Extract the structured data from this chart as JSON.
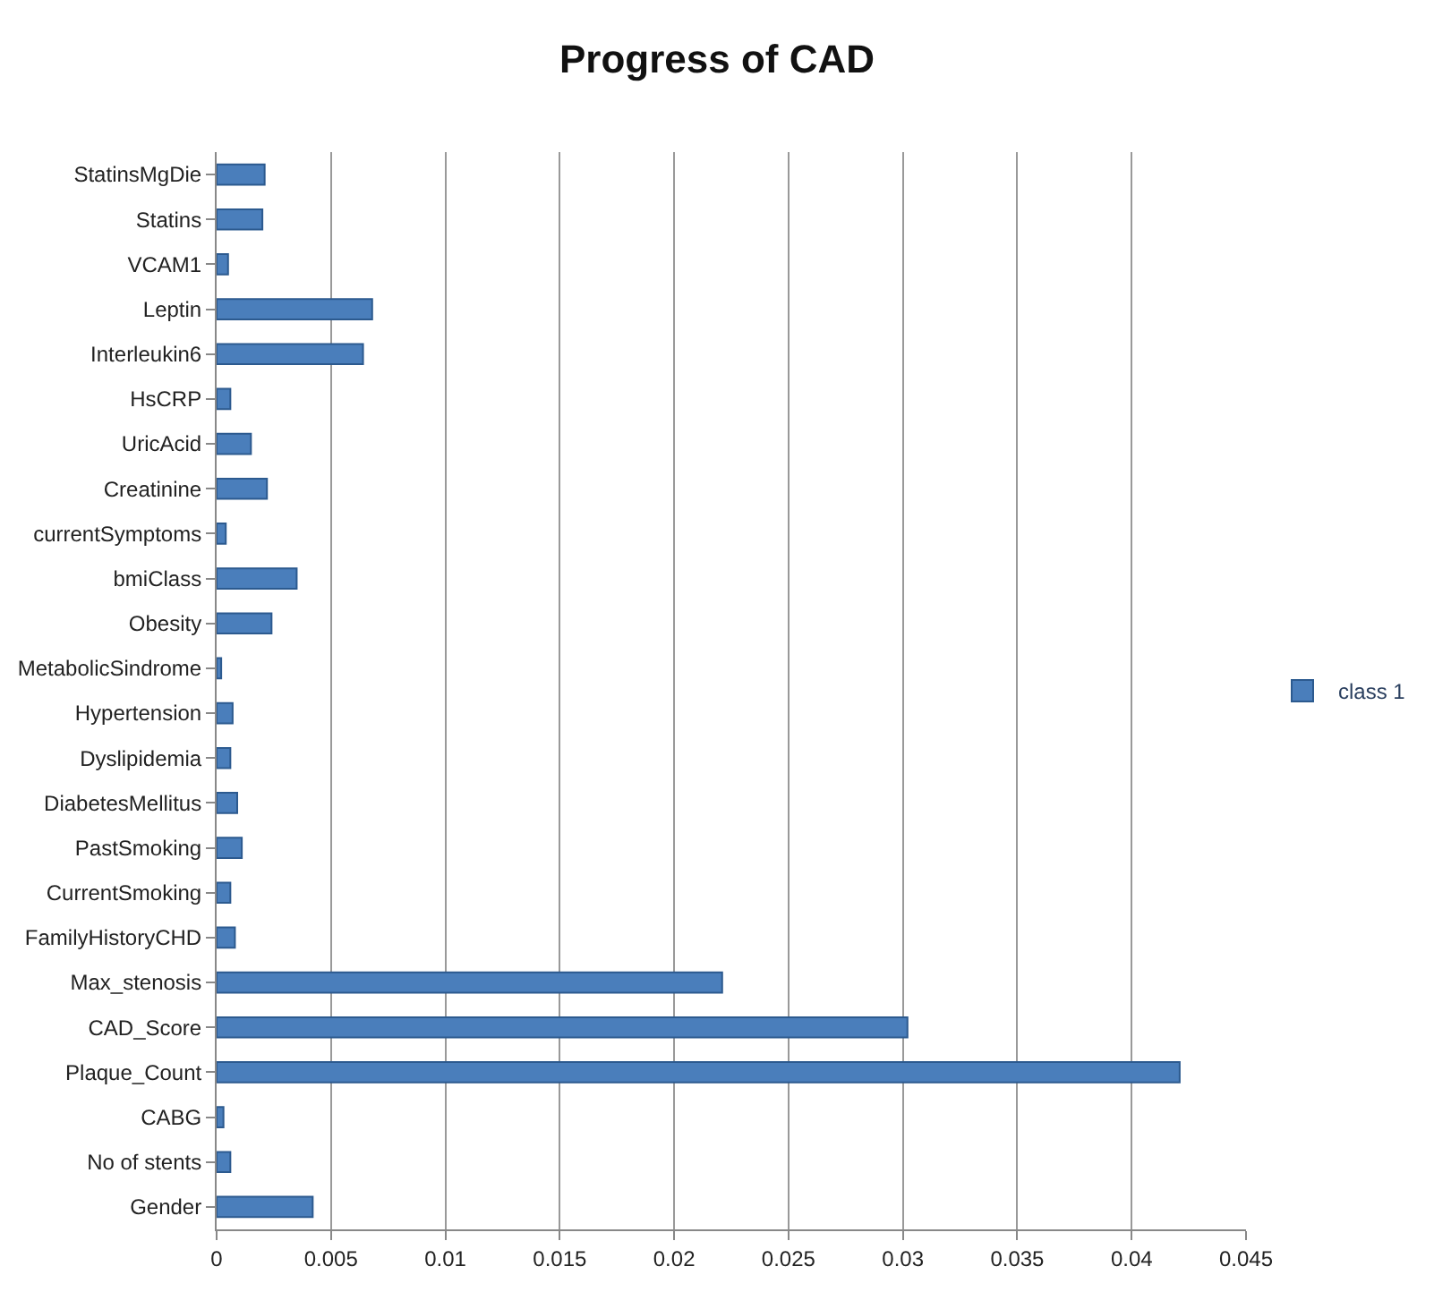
{
  "chart_data": {
    "type": "bar",
    "orientation": "horizontal",
    "title": "Progress of CAD",
    "categories": [
      "StatinsMgDie",
      "Statins",
      "VCAM1",
      "Leptin",
      "Interleukin6",
      "HsCRP",
      "UricAcid",
      "Creatinine",
      "currentSymptoms",
      "bmiClass",
      "Obesity",
      "MetabolicSindrome",
      "Hypertension",
      "Dyslipidemia",
      "DiabetesMellitus",
      "PastSmoking",
      "CurrentSmoking",
      "FamilyHistoryCHD",
      "Max_stenosis",
      "CAD_Score",
      "Plaque_Count",
      "CABG",
      "No of stents",
      "Gender"
    ],
    "series": [
      {
        "name": "class 1",
        "color": "#4a7ebb",
        "values": [
          0.0021,
          0.002,
          0.0005,
          0.0068,
          0.0064,
          0.0006,
          0.0015,
          0.0022,
          0.0004,
          0.0035,
          0.0024,
          0.0002,
          0.0007,
          0.0006,
          0.0009,
          0.0011,
          0.0006,
          0.0008,
          0.0221,
          0.0302,
          0.0421,
          0.0003,
          0.0006,
          0.0042
        ]
      }
    ],
    "xlim": [
      0,
      0.045
    ],
    "xticks": [
      0,
      0.005,
      0.01,
      0.015,
      0.02,
      0.025,
      0.03,
      0.035,
      0.04,
      0.045
    ],
    "grid": "x",
    "legend": "right"
  }
}
